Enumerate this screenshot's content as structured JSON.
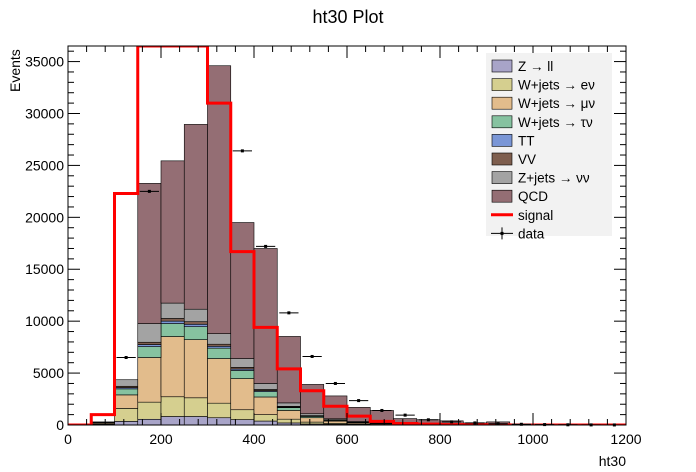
{
  "chart_data": {
    "type": "bar",
    "stacked": true,
    "title": "ht30 Plot",
    "xlabel": "ht30",
    "ylabel": "Events",
    "xlim": [
      0,
      1200
    ],
    "ylim": [
      0,
      36500
    ],
    "bin_edges": [
      0,
      50,
      100,
      150,
      200,
      250,
      300,
      350,
      400,
      450,
      500,
      550,
      600,
      650,
      700,
      750,
      800,
      850,
      900,
      950,
      1000,
      1050,
      1100,
      1150,
      1200
    ],
    "xticks": [
      0,
      200,
      400,
      600,
      800,
      1000,
      1200
    ],
    "yticks": [
      0,
      5000,
      10000,
      15000,
      20000,
      25000,
      30000,
      35000
    ],
    "grid": false,
    "legend_position": "top-right",
    "series": [
      {
        "name": "Z → ll",
        "color": "#a8a4c8",
        "values": [
          0,
          30,
          350,
          550,
          820,
          820,
          700,
          520,
          380,
          200,
          100,
          60,
          30,
          20,
          10,
          5,
          3,
          2,
          1,
          0,
          0,
          0,
          0,
          0
        ]
      },
      {
        "name": "W+jets → eν",
        "color": "#d5cf8f",
        "values": [
          0,
          60,
          1250,
          1650,
          1900,
          1800,
          1400,
          950,
          620,
          360,
          180,
          100,
          55,
          35,
          20,
          10,
          6,
          3,
          2,
          1,
          0,
          0,
          0,
          0
        ]
      },
      {
        "name": "W+jets → μν",
        "color": "#e2bc8c",
        "values": [
          0,
          100,
          1300,
          4300,
          5800,
          5600,
          4300,
          3000,
          1700,
          840,
          420,
          220,
          115,
          70,
          40,
          20,
          12,
          7,
          4,
          2,
          1,
          0,
          0,
          0
        ]
      },
      {
        "name": "W+jets → τν",
        "color": "#86c2a0",
        "values": [
          0,
          40,
          580,
          1050,
          1250,
          1250,
          1000,
          780,
          520,
          270,
          130,
          70,
          35,
          20,
          12,
          6,
          3,
          2,
          1,
          0,
          0,
          0,
          0,
          0
        ]
      },
      {
        "name": "TT",
        "color": "#7a96d6",
        "values": [
          0,
          5,
          120,
          200,
          230,
          230,
          180,
          140,
          90,
          60,
          35,
          20,
          12,
          8,
          5,
          3,
          2,
          1,
          0,
          0,
          0,
          0,
          0,
          0
        ]
      },
      {
        "name": "VV",
        "color": "#7e5e4e",
        "values": [
          0,
          5,
          130,
          220,
          260,
          250,
          200,
          160,
          110,
          70,
          40,
          25,
          15,
          8,
          5,
          3,
          2,
          1,
          0,
          0,
          0,
          0,
          0,
          0
        ]
      },
      {
        "name": "Z+jets → νν",
        "color": "#a3a3a3",
        "values": [
          0,
          60,
          630,
          1800,
          1480,
          1200,
          1020,
          850,
          580,
          330,
          180,
          105,
          68,
          39,
          28,
          13,
          4,
          4,
          2,
          3,
          0,
          0,
          0,
          0
        ]
      },
      {
        "name": "QCD",
        "color": "#946e74",
        "values": [
          0,
          0,
          0,
          13500,
          13700,
          17800,
          25800,
          13100,
          13000,
          6400,
          2825,
          2200,
          1370,
          1200,
          500,
          450,
          368,
          180,
          290,
          94,
          0,
          0,
          0,
          0
        ]
      }
    ],
    "signal": {
      "name": "signal",
      "color": "#ff0000",
      "values": [
        0,
        1000,
        22300,
        44000,
        44000,
        36700,
        31000,
        16700,
        9400,
        5400,
        3300,
        1800,
        850,
        350,
        150,
        80,
        40,
        20,
        10,
        5,
        0,
        0,
        0,
        0
      ]
    },
    "data": {
      "name": "data",
      "values": [
        null,
        null,
        6500,
        22500,
        null,
        null,
        null,
        26400,
        17200,
        10800,
        6600,
        4000,
        2350,
        1400,
        950,
        500,
        300,
        200,
        120,
        70,
        40,
        20,
        10,
        5
      ]
    }
  }
}
